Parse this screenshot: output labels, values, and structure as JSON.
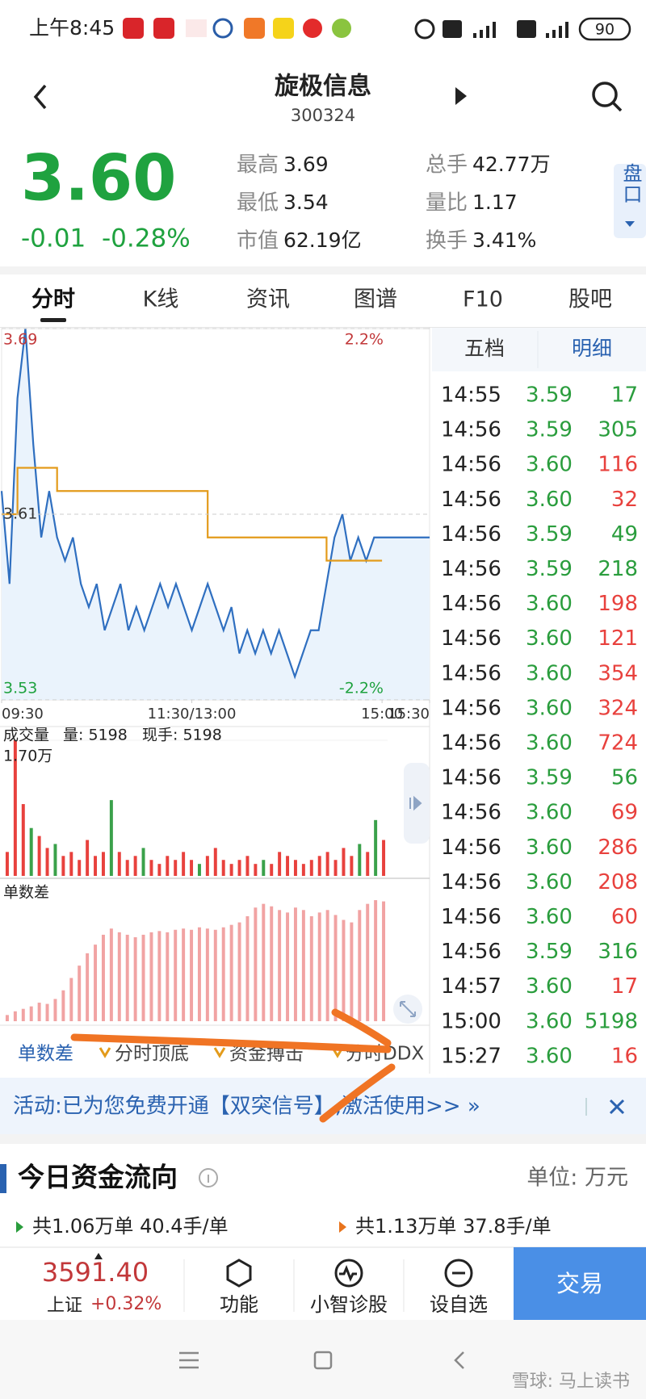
{
  "status_bar": {
    "time": "上午8:45",
    "battery": "90"
  },
  "header": {
    "title": "旋极信息",
    "code": "300324"
  },
  "quote": {
    "price": "3.60",
    "change": "-0.01",
    "change_pct": "-0.28%",
    "stats": [
      {
        "label": "最高",
        "value": "3.69"
      },
      {
        "label": "最低",
        "value": "3.54"
      },
      {
        "label": "市值",
        "value": "62.19亿"
      },
      {
        "label": "总手",
        "value": "42.77万"
      },
      {
        "label": "量比",
        "value": "1.17"
      },
      {
        "label": "换手",
        "value": "3.41%"
      }
    ]
  },
  "side_tab": "盘口",
  "tabs": [
    "分时",
    "K线",
    "资讯",
    "图谱",
    "F10",
    "股吧"
  ],
  "chart_data": [
    {
      "type": "line",
      "x": [
        0,
        5,
        10,
        15,
        20,
        25,
        30,
        35,
        40,
        45,
        50,
        55,
        60,
        65,
        70,
        75,
        80,
        85,
        90,
        95,
        100,
        105,
        110,
        115,
        120,
        125,
        130,
        135,
        140,
        145,
        150,
        155,
        160,
        165,
        170,
        175,
        180,
        185,
        190,
        195,
        200,
        205,
        210,
        215,
        220,
        225,
        230,
        235,
        240,
        270
      ],
      "xlim": [
        0,
        270
      ],
      "xticks": [
        {
          "value": 0,
          "label": "09:30"
        },
        {
          "value": 120,
          "label": "11:30/13:00"
        },
        {
          "value": 240,
          "label": "15:00"
        },
        {
          "value": 270,
          "label": "15:30"
        }
      ],
      "ylim": [
        3.53,
        3.69
      ],
      "yticks": [
        3.53,
        3.61,
        3.69
      ],
      "y2lim": [
        -2.2,
        2.2
      ],
      "y2ticks": [
        {
          "value": -2.2,
          "label": "-2.2%"
        },
        {
          "value": 2.2,
          "label": "2.2%"
        }
      ],
      "series": [
        {
          "color": "#2f6fc0",
          "area_color": "#eaf3fc",
          "values": [
            3.62,
            3.58,
            3.66,
            3.69,
            3.64,
            3.6,
            3.62,
            3.6,
            3.59,
            3.6,
            3.58,
            3.57,
            3.58,
            3.56,
            3.57,
            3.58,
            3.56,
            3.57,
            3.56,
            3.57,
            3.58,
            3.57,
            3.58,
            3.57,
            3.56,
            3.57,
            3.58,
            3.57,
            3.56,
            3.57,
            3.55,
            3.56,
            3.55,
            3.56,
            3.55,
            3.56,
            3.55,
            3.54,
            3.55,
            3.56,
            3.56,
            3.58,
            3.6,
            3.61,
            3.59,
            3.6,
            3.59,
            3.6,
            3.6,
            3.6
          ]
        },
        {
          "color": "#e39b1b",
          "step": true,
          "values": [
            3.61,
            3.61,
            3.63,
            3.63,
            3.63,
            3.63,
            3.63,
            3.62,
            3.62,
            3.62,
            3.62,
            3.62,
            3.62,
            3.62,
            3.62,
            3.62,
            3.62,
            3.62,
            3.62,
            3.62,
            3.62,
            3.62,
            3.62,
            3.62,
            3.62,
            3.62,
            3.6,
            3.6,
            3.6,
            3.6,
            3.6,
            3.6,
            3.6,
            3.6,
            3.6,
            3.6,
            3.6,
            3.6,
            3.6,
            3.6,
            3.6,
            3.59,
            3.59,
            3.59,
            3.59,
            3.59,
            3.59,
            3.59,
            3.59,
            null
          ]
        }
      ]
    },
    {
      "type": "bar",
      "title": "成交量",
      "annotations": [
        "量: 5198",
        "现手: 5198"
      ],
      "ylim": [
        0,
        17000
      ],
      "yticks": [
        {
          "value": 17000,
          "label": "1.70万"
        }
      ],
      "values": [
        3000,
        17000,
        9000,
        6000,
        5000,
        3500,
        4000,
        2500,
        3000,
        2000,
        4500,
        2500,
        3000,
        9500,
        3000,
        2000,
        2500,
        3500,
        2000,
        1500,
        2500,
        2000,
        3000,
        2000,
        1500,
        2500,
        3500,
        2000,
        1500,
        2000,
        2500,
        1500,
        2000,
        1500,
        3000,
        2500,
        2000,
        1500,
        2000,
        2500,
        3000,
        2000,
        3500,
        2500,
        4000,
        3000,
        7000,
        4500
      ],
      "colors": [
        "#e8413d",
        "#e8413d",
        "#e8413d",
        "#3aa14a",
        "#e8413d",
        "#e8413d",
        "#3aa14a",
        "#e8413d",
        "#e8413d",
        "#e8413d",
        "#e8413d",
        "#e8413d",
        "#e8413d",
        "#3aa14a",
        "#e8413d",
        "#e8413d",
        "#e8413d",
        "#3aa14a",
        "#e8413d",
        "#e8413d",
        "#e8413d",
        "#e8413d",
        "#e8413d",
        "#e8413d",
        "#3aa14a",
        "#e8413d",
        "#e8413d",
        "#e8413d",
        "#e8413d",
        "#e8413d",
        "#e8413d",
        "#e8413d",
        "#3aa14a",
        "#e8413d",
        "#e8413d",
        "#e8413d",
        "#e8413d",
        "#e8413d",
        "#e8413d",
        "#e8413d",
        "#e8413d",
        "#e8413d",
        "#e8413d",
        "#e8413d",
        "#3aa14a",
        "#e8413d",
        "#3aa14a",
        "#e8413d"
      ]
    },
    {
      "type": "bar",
      "title": "单数差",
      "ylim": [
        0,
        100
      ],
      "color": "#f1a3a3",
      "values": [
        5,
        8,
        10,
        12,
        15,
        14,
        18,
        25,
        35,
        45,
        55,
        62,
        70,
        75,
        72,
        70,
        68,
        70,
        72,
        73,
        72,
        74,
        75,
        74,
        76,
        75,
        74,
        76,
        78,
        80,
        85,
        92,
        95,
        93,
        90,
        88,
        92,
        90,
        85,
        88,
        90,
        86,
        82,
        80,
        90,
        95,
        98,
        97
      ]
    }
  ],
  "trade_panel": {
    "tabs": [
      "五档",
      "明细"
    ],
    "rows": [
      {
        "time": "14:55",
        "price": "3.59",
        "volume": "17",
        "price_color": "#2a9d3d",
        "volume_color": "#2a9d3d"
      },
      {
        "time": "14:56",
        "price": "3.59",
        "volume": "305",
        "price_color": "#2a9d3d",
        "volume_color": "#2a9d3d"
      },
      {
        "time": "14:56",
        "price": "3.60",
        "volume": "116",
        "price_color": "#2a9d3d",
        "volume_color": "#e8413d"
      },
      {
        "time": "14:56",
        "price": "3.60",
        "volume": "32",
        "price_color": "#2a9d3d",
        "volume_color": "#e8413d"
      },
      {
        "time": "14:56",
        "price": "3.59",
        "volume": "49",
        "price_color": "#2a9d3d",
        "volume_color": "#2a9d3d"
      },
      {
        "time": "14:56",
        "price": "3.59",
        "volume": "218",
        "price_color": "#2a9d3d",
        "volume_color": "#2a9d3d"
      },
      {
        "time": "14:56",
        "price": "3.60",
        "volume": "198",
        "price_color": "#2a9d3d",
        "volume_color": "#e8413d"
      },
      {
        "time": "14:56",
        "price": "3.60",
        "volume": "121",
        "price_color": "#2a9d3d",
        "volume_color": "#e8413d"
      },
      {
        "time": "14:56",
        "price": "3.60",
        "volume": "354",
        "price_color": "#2a9d3d",
        "volume_color": "#e8413d"
      },
      {
        "time": "14:56",
        "price": "3.60",
        "volume": "324",
        "price_color": "#2a9d3d",
        "volume_color": "#e8413d"
      },
      {
        "time": "14:56",
        "price": "3.60",
        "volume": "724",
        "price_color": "#2a9d3d",
        "volume_color": "#e8413d"
      },
      {
        "time": "14:56",
        "price": "3.59",
        "volume": "56",
        "price_color": "#2a9d3d",
        "volume_color": "#2a9d3d"
      },
      {
        "time": "14:56",
        "price": "3.60",
        "volume": "69",
        "price_color": "#2a9d3d",
        "volume_color": "#e8413d"
      },
      {
        "time": "14:56",
        "price": "3.60",
        "volume": "286",
        "price_color": "#2a9d3d",
        "volume_color": "#e8413d"
      },
      {
        "time": "14:56",
        "price": "3.60",
        "volume": "208",
        "price_color": "#2a9d3d",
        "volume_color": "#e8413d"
      },
      {
        "time": "14:56",
        "price": "3.60",
        "volume": "60",
        "price_color": "#2a9d3d",
        "volume_color": "#e8413d"
      },
      {
        "time": "14:56",
        "price": "3.59",
        "volume": "316",
        "price_color": "#2a9d3d",
        "volume_color": "#2a9d3d"
      },
      {
        "time": "14:57",
        "price": "3.60",
        "volume": "17",
        "price_color": "#2a9d3d",
        "volume_color": "#e8413d"
      },
      {
        "time": "15:00",
        "price": "3.60",
        "volume": "5198",
        "price_color": "#2a9d3d",
        "volume_color": "#2a9d3d"
      },
      {
        "time": "15:27",
        "price": "3.60",
        "volume": "16",
        "price_color": "#2a9d3d",
        "volume_color": "#e8413d"
      }
    ]
  },
  "indicator_tabs": [
    "单数差",
    "分时顶底",
    "资金搏击",
    "分时DDX"
  ],
  "banner": "活动:已为您免费开通【双突信号】,激活使用>> »",
  "fund_flow": {
    "title": "今日资金流向",
    "unit": "单位: 万元",
    "inflow": "共1.06万单 40.4手/单",
    "outflow": "共1.13万单 37.8手/单"
  },
  "bottom_bar": {
    "index_value": "3591.40",
    "index_name": "上证",
    "index_change": "+0.32%",
    "buttons": [
      "功能",
      "小智诊股",
      "设自选"
    ],
    "trade": "交易"
  },
  "watermark": "雪球: 马上读书"
}
